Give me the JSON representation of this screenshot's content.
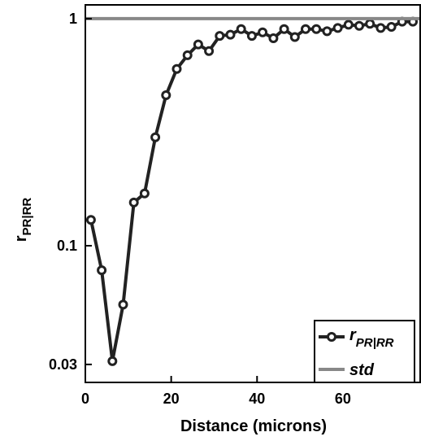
{
  "chart_data": {
    "type": "line",
    "xlabel": "Distance (microns)",
    "ylabel_main": "r",
    "ylabel_sub": "PR|RR",
    "xlim": [
      0,
      78
    ],
    "ylim": [
      0.025,
      1.15
    ],
    "y_scale": "log",
    "grid": false,
    "legend_position": "bottom-right",
    "x_ticks": [
      0,
      20,
      40,
      60
    ],
    "x_tick_labels": [
      "0",
      "20",
      "40",
      "60"
    ],
    "y_ticks": [
      0.03,
      0.1,
      1
    ],
    "y_tick_labels": [
      "0.03",
      "0.1",
      "1"
    ],
    "series": [
      {
        "name_main": "r",
        "name_sub": "PR|RR",
        "color": "#222222",
        "marker": "circle",
        "x": [
          1.3,
          3.8,
          6.3,
          8.8,
          11.3,
          13.8,
          16.3,
          18.8,
          21.3,
          23.8,
          26.3,
          28.8,
          31.3,
          33.8,
          36.3,
          38.8,
          41.3,
          43.8,
          46.3,
          48.8,
          51.3,
          53.8,
          56.3,
          58.8,
          61.3,
          63.8,
          66.3,
          68.8,
          71.3,
          73.8,
          76.3
        ],
        "values": [
          0.13,
          0.078,
          0.031,
          0.055,
          0.155,
          0.17,
          0.3,
          0.46,
          0.6,
          0.69,
          0.77,
          0.72,
          0.84,
          0.85,
          0.9,
          0.84,
          0.87,
          0.82,
          0.9,
          0.83,
          0.9,
          0.9,
          0.88,
          0.91,
          0.94,
          0.93,
          0.95,
          0.91,
          0.92,
          0.97,
          0.97
        ]
      },
      {
        "name": "std",
        "color": "#888888",
        "marker": "none",
        "x": [
          0,
          78
        ],
        "values": [
          1,
          1
        ]
      }
    ]
  }
}
